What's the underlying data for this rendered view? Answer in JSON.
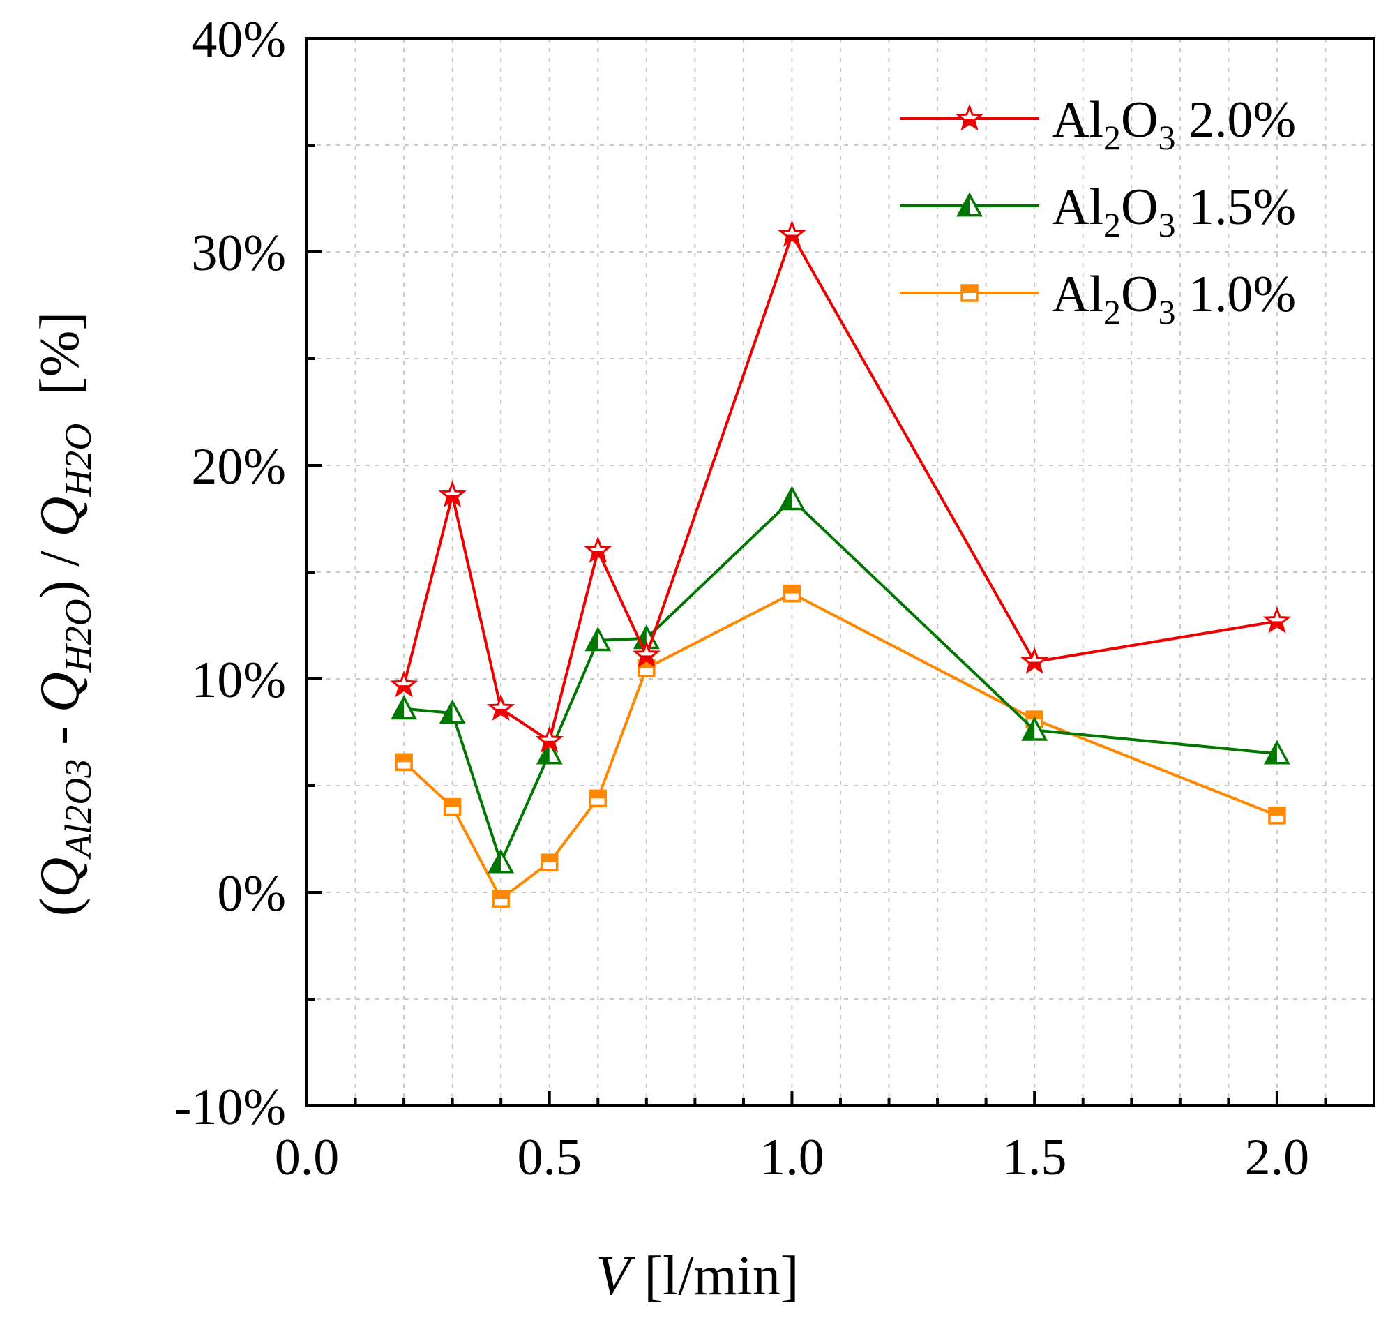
{
  "chart_data": {
    "type": "line",
    "title": "",
    "xlabel": {
      "italic": "V",
      "rest": " [l/min]"
    },
    "ylabel": {
      "open": "(",
      "q": "Q",
      "sub_al": "Al2O3",
      "minus": " - ",
      "sub_h2o": "H2O",
      "close": ")",
      "slash": " / ",
      "unit": "[%]"
    },
    "xlim": [
      0.0,
      2.2
    ],
    "ylim": [
      -10,
      40
    ],
    "x_ticks": [
      0.0,
      0.5,
      1.0,
      1.5,
      2.0
    ],
    "x_tick_labels": [
      "0.0",
      "0.5",
      "1.0",
      "1.5",
      "2.0"
    ],
    "y_ticks": [
      -10,
      0,
      10,
      20,
      30,
      40
    ],
    "y_tick_labels": [
      "-10%",
      "0%",
      "10%",
      "20%",
      "30%",
      "40%"
    ],
    "grid": true,
    "legend_position": "top-right",
    "x": [
      0.2,
      0.3,
      0.4,
      0.5,
      0.6,
      0.7,
      1.0,
      1.5,
      2.0
    ],
    "series": [
      {
        "name": "Al2O3 2.0%",
        "label_main": "Al",
        "label_sub1": "2",
        "label_mid": "O",
        "label_sub2": "3",
        "label_pct": " 2.0%",
        "color": "#ee0000",
        "marker": "star",
        "values": [
          9.7,
          18.6,
          8.6,
          7.1,
          16.0,
          11.1,
          30.8,
          10.8,
          12.7
        ]
      },
      {
        "name": "Al2O3 1.5%",
        "label_main": "Al",
        "label_sub1": "2",
        "label_mid": "O",
        "label_sub2": "3",
        "label_pct": " 1.5%",
        "color": "#007700",
        "marker": "triangle",
        "values": [
          8.6,
          8.4,
          1.4,
          6.5,
          11.8,
          11.9,
          18.4,
          7.6,
          6.5
        ]
      },
      {
        "name": "Al2O3 1.0%",
        "label_main": "Al",
        "label_sub1": "2",
        "label_mid": "O",
        "label_sub2": "3",
        "label_pct": " 1.0%",
        "color": "#ff8800",
        "marker": "square",
        "values": [
          6.1,
          4.0,
          -0.3,
          1.4,
          4.4,
          10.5,
          14.0,
          8.1,
          3.6
        ]
      }
    ]
  }
}
